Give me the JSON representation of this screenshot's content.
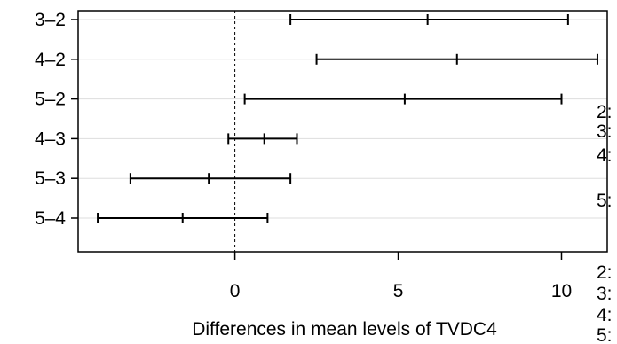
{
  "chart_data": {
    "type": "errorbar",
    "xlabel": "Differences in mean levels of TVDC4",
    "x_ticks": [
      0,
      5,
      10
    ],
    "xlim": [
      -4.8,
      11.4
    ],
    "reference_line": 0,
    "grid": true,
    "comparisons": [
      {
        "label": "3–2",
        "lwr": 1.7,
        "diff": 5.9,
        "upr": 10.2
      },
      {
        "label": "4–2",
        "lwr": 2.5,
        "diff": 6.8,
        "upr": 11.1
      },
      {
        "label": "5–2",
        "lwr": 0.3,
        "diff": 5.2,
        "upr": 10.0
      },
      {
        "label": "4–3",
        "lwr": -0.2,
        "diff": 0.9,
        "upr": 1.9
      },
      {
        "label": "5–3",
        "lwr": -3.2,
        "diff": -0.8,
        "upr": 1.7
      },
      {
        "label": "5–4",
        "lwr": -4.2,
        "diff": -1.6,
        "upr": 1.0
      }
    ],
    "side_labels": [
      "2:",
      "3:",
      "4:",
      "5:",
      "2:",
      "3:",
      "4:",
      "5:"
    ]
  }
}
